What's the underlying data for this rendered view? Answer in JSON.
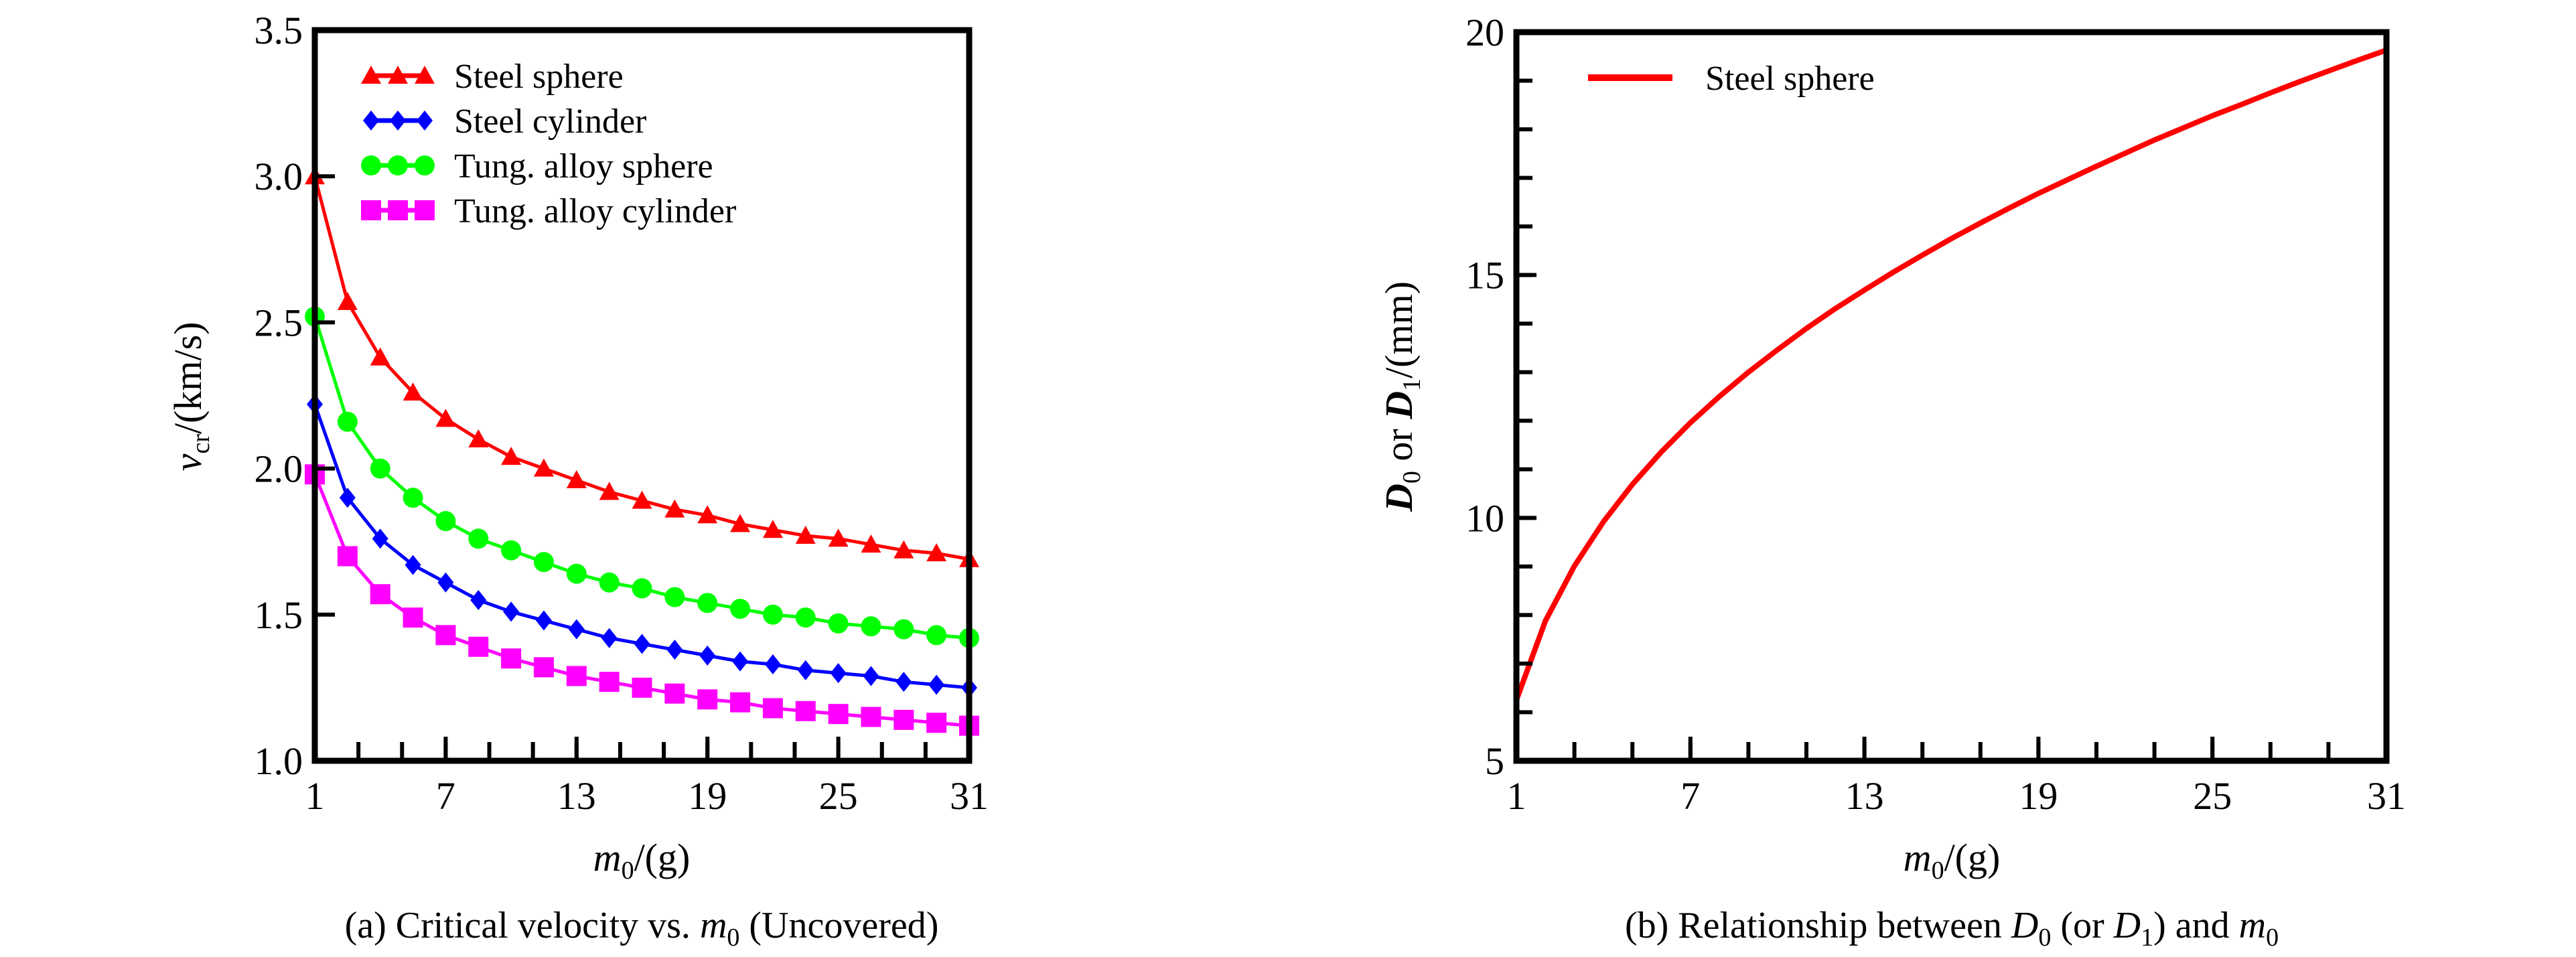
{
  "chart_data": [
    {
      "type": "line",
      "caption": "(a)  Critical velocity vs. m0 (Uncovered)",
      "caption_parts": {
        "prefix": "(a)  Critical velocity vs. ",
        "var": "m",
        "sub": "0",
        "suffix": " (Uncovered)"
      },
      "xlabel": {
        "var": "m",
        "sub": "0",
        "unit": "/(g)"
      },
      "ylabel": {
        "var": "v",
        "sub": "cr",
        "unit": "/(km/s)"
      },
      "xlim": [
        1,
        31
      ],
      "ylim": [
        1.0,
        3.5
      ],
      "xticks": [
        "1",
        "7",
        "13",
        "19",
        "25",
        "31"
      ],
      "yticks": [
        "1.0",
        "1.5",
        "2.0",
        "2.5",
        "3.0",
        "3.5"
      ],
      "grid": false,
      "legend_position": "top-left",
      "x": [
        1,
        2.5,
        4,
        5.5,
        7,
        8.5,
        10,
        11.5,
        13,
        14.5,
        16,
        17.5,
        19,
        20.5,
        22,
        23.5,
        25,
        26.5,
        28,
        29.5,
        31
      ],
      "series": [
        {
          "name": "Steel sphere",
          "color": "#ff0000",
          "marker": "triangle",
          "values": [
            3.0,
            2.57,
            2.38,
            2.26,
            2.17,
            2.1,
            2.04,
            2.0,
            1.96,
            1.92,
            1.89,
            1.86,
            1.84,
            1.81,
            1.79,
            1.77,
            1.76,
            1.74,
            1.72,
            1.71,
            1.69
          ]
        },
        {
          "name": "Steel cylinder",
          "color": "#0000ff",
          "marker": "diamond",
          "values": [
            2.22,
            1.9,
            1.76,
            1.67,
            1.61,
            1.55,
            1.51,
            1.48,
            1.45,
            1.42,
            1.4,
            1.38,
            1.36,
            1.34,
            1.33,
            1.31,
            1.3,
            1.29,
            1.27,
            1.26,
            1.25
          ]
        },
        {
          "name": "Tung. alloy sphere",
          "color": "#00ff00",
          "marker": "circle",
          "values": [
            2.52,
            2.16,
            2.0,
            1.9,
            1.82,
            1.76,
            1.72,
            1.68,
            1.64,
            1.61,
            1.59,
            1.56,
            1.54,
            1.52,
            1.5,
            1.49,
            1.47,
            1.46,
            1.45,
            1.43,
            1.42
          ]
        },
        {
          "name": "Tung. alloy cylinder",
          "color": "#ff00ff",
          "marker": "square",
          "values": [
            1.98,
            1.7,
            1.57,
            1.49,
            1.43,
            1.39,
            1.35,
            1.32,
            1.29,
            1.27,
            1.25,
            1.23,
            1.21,
            1.2,
            1.18,
            1.17,
            1.16,
            1.15,
            1.14,
            1.13,
            1.12
          ]
        }
      ]
    },
    {
      "type": "line",
      "caption_parts": {
        "prefix": "(b)  Relationship between ",
        "v1": "D",
        "s1": "0",
        "mid1": " (or ",
        "v2": "D",
        "s2": "1",
        "mid2": ") and ",
        "v3": "m",
        "s3": "0"
      },
      "xlabel": {
        "var": "m",
        "sub": "0",
        "unit": "/(g)"
      },
      "ylabel": {
        "v1": "D",
        "s1": "0",
        "mid": " or ",
        "v2": "D",
        "s2": "1",
        "unit": "/(mm)"
      },
      "xlim": [
        1,
        31
      ],
      "ylim": [
        5,
        20
      ],
      "xticks": [
        "1",
        "7",
        "13",
        "19",
        "25",
        "31"
      ],
      "yticks": [
        "5",
        "10",
        "15",
        "20"
      ],
      "grid": false,
      "legend_position": "top-left",
      "x": [
        1,
        2,
        3,
        4,
        5,
        6,
        7,
        8,
        9,
        10,
        11,
        12,
        13,
        14,
        15,
        16,
        17,
        18,
        19,
        20,
        21,
        22,
        23,
        24,
        25,
        26,
        27,
        28,
        29,
        30,
        31
      ],
      "series": [
        {
          "name": "Steel sphere",
          "color": "#ff0000",
          "values": [
            6.25,
            7.88,
            9.01,
            9.92,
            10.69,
            11.36,
            11.96,
            12.5,
            13.0,
            13.46,
            13.9,
            14.31,
            14.69,
            15.06,
            15.41,
            15.75,
            16.07,
            16.38,
            16.68,
            16.96,
            17.24,
            17.51,
            17.78,
            18.03,
            18.28,
            18.51,
            18.75,
            18.98,
            19.2,
            19.42,
            19.63
          ]
        }
      ]
    }
  ]
}
